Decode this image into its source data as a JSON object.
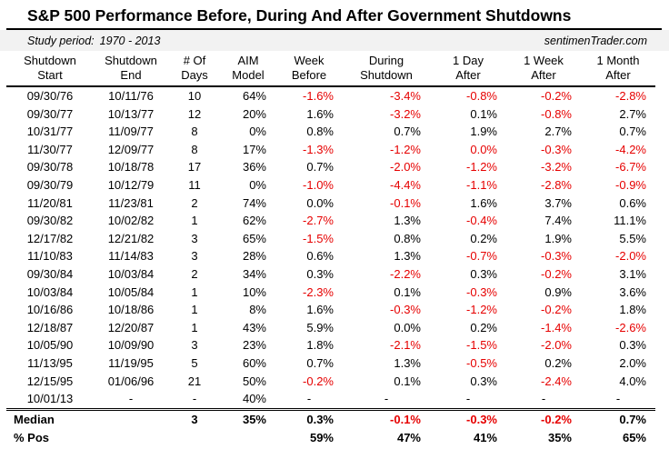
{
  "title": "S&P 500 Performance Before, During And After Government Shutdowns",
  "subheader": {
    "study_period_label": "Study period:",
    "study_period_value": "1970 - 2013",
    "source": "sentimenTrader.com"
  },
  "chart_data": {
    "type": "table",
    "title": "S&P 500 Performance Before, During And After Government Shutdowns",
    "study_period": "1970 - 2013",
    "source": "sentimenTrader.com",
    "columns": [
      {
        "id": "shutdown-start",
        "label": [
          "Shutdown",
          "Start"
        ],
        "align": "center"
      },
      {
        "id": "shutdown-end",
        "label": [
          "Shutdown",
          "End"
        ],
        "align": "center"
      },
      {
        "id": "num-days",
        "label": [
          "# Of",
          "Days"
        ],
        "align": "center"
      },
      {
        "id": "aim-model",
        "label": [
          "AIM",
          "Model"
        ],
        "align": "right"
      },
      {
        "id": "week-before",
        "label": [
          "Week",
          "Before"
        ],
        "align": "right"
      },
      {
        "id": "during-shutdown",
        "label": [
          "During",
          "Shutdown"
        ],
        "align": "right"
      },
      {
        "id": "day-after",
        "label": [
          "1 Day",
          "After"
        ],
        "align": "right"
      },
      {
        "id": "week-after",
        "label": [
          "1 Week",
          "After"
        ],
        "align": "right"
      },
      {
        "id": "month-after",
        "label": [
          "1 Month",
          "After"
        ],
        "align": "right"
      }
    ],
    "rows": [
      [
        "09/30/76",
        "10/11/76",
        "10",
        "64%",
        "-1.6%",
        "-3.4%",
        "-0.8%",
        "-0.2%",
        "-2.8%"
      ],
      [
        "09/30/77",
        "10/13/77",
        "12",
        "20%",
        "1.6%",
        "-3.2%",
        "0.1%",
        "-0.8%",
        "2.7%"
      ],
      [
        "10/31/77",
        "11/09/77",
        "8",
        "0%",
        "0.8%",
        "0.7%",
        "1.9%",
        "2.7%",
        "0.7%"
      ],
      [
        "11/30/77",
        "12/09/77",
        "8",
        "17%",
        "-1.3%",
        "-1.2%",
        "0.0%",
        "-0.3%",
        "-4.2%"
      ],
      [
        "09/30/78",
        "10/18/78",
        "17",
        "36%",
        "0.7%",
        "-2.0%",
        "-1.2%",
        "-3.2%",
        "-6.7%"
      ],
      [
        "09/30/79",
        "10/12/79",
        "11",
        "0%",
        "-1.0%",
        "-4.4%",
        "-1.1%",
        "-2.8%",
        "-0.9%"
      ],
      [
        "11/20/81",
        "11/23/81",
        "2",
        "74%",
        "0.0%",
        "-0.1%",
        "1.6%",
        "3.7%",
        "0.6%"
      ],
      [
        "09/30/82",
        "10/02/82",
        "1",
        "62%",
        "-2.7%",
        "1.3%",
        "-0.4%",
        "7.4%",
        "11.1%"
      ],
      [
        "12/17/82",
        "12/21/82",
        "3",
        "65%",
        "-1.5%",
        "0.8%",
        "0.2%",
        "1.9%",
        "5.5%"
      ],
      [
        "11/10/83",
        "11/14/83",
        "3",
        "28%",
        "0.6%",
        "1.3%",
        "-0.7%",
        "-0.3%",
        "-2.0%"
      ],
      [
        "09/30/84",
        "10/03/84",
        "2",
        "34%",
        "0.3%",
        "-2.2%",
        "0.3%",
        "-0.2%",
        "3.1%"
      ],
      [
        "10/03/84",
        "10/05/84",
        "1",
        "10%",
        "-2.3%",
        "0.1%",
        "-0.3%",
        "0.9%",
        "3.6%"
      ],
      [
        "10/16/86",
        "10/18/86",
        "1",
        "8%",
        "1.6%",
        "-0.3%",
        "-1.2%",
        "-0.2%",
        "1.8%"
      ],
      [
        "12/18/87",
        "12/20/87",
        "1",
        "43%",
        "5.9%",
        "0.0%",
        "0.2%",
        "-1.4%",
        "-2.6%"
      ],
      [
        "10/05/90",
        "10/09/90",
        "3",
        "23%",
        "1.8%",
        "-2.1%",
        "-1.5%",
        "-2.0%",
        "0.3%"
      ],
      [
        "11/13/95",
        "11/19/95",
        "5",
        "60%",
        "0.7%",
        "1.3%",
        "-0.5%",
        "0.2%",
        "2.0%"
      ],
      [
        "12/15/95",
        "01/06/96",
        "21",
        "50%",
        "-0.2%",
        "0.1%",
        "0.3%",
        "-2.4%",
        "4.0%"
      ],
      [
        "10/01/13",
        "-",
        "-",
        "40%",
        "-",
        "-",
        "-",
        "-",
        "-"
      ]
    ],
    "summary_rows": [
      {
        "name": "median",
        "cells": [
          "Median",
          "",
          "3",
          "35%",
          "0.3%",
          "-0.1%",
          "-0.3%",
          "-0.2%",
          "0.7%"
        ]
      },
      {
        "name": "pct-pos",
        "cells": [
          "% Pos",
          "",
          "",
          "",
          "59%",
          "47%",
          "41%",
          "35%",
          "65%"
        ]
      }
    ]
  },
  "presentation": {
    "negative_color": "#e60000",
    "study_band_bg": "#f2f2f2",
    "red_override_cells": [
      [
        3,
        6
      ]
    ]
  }
}
